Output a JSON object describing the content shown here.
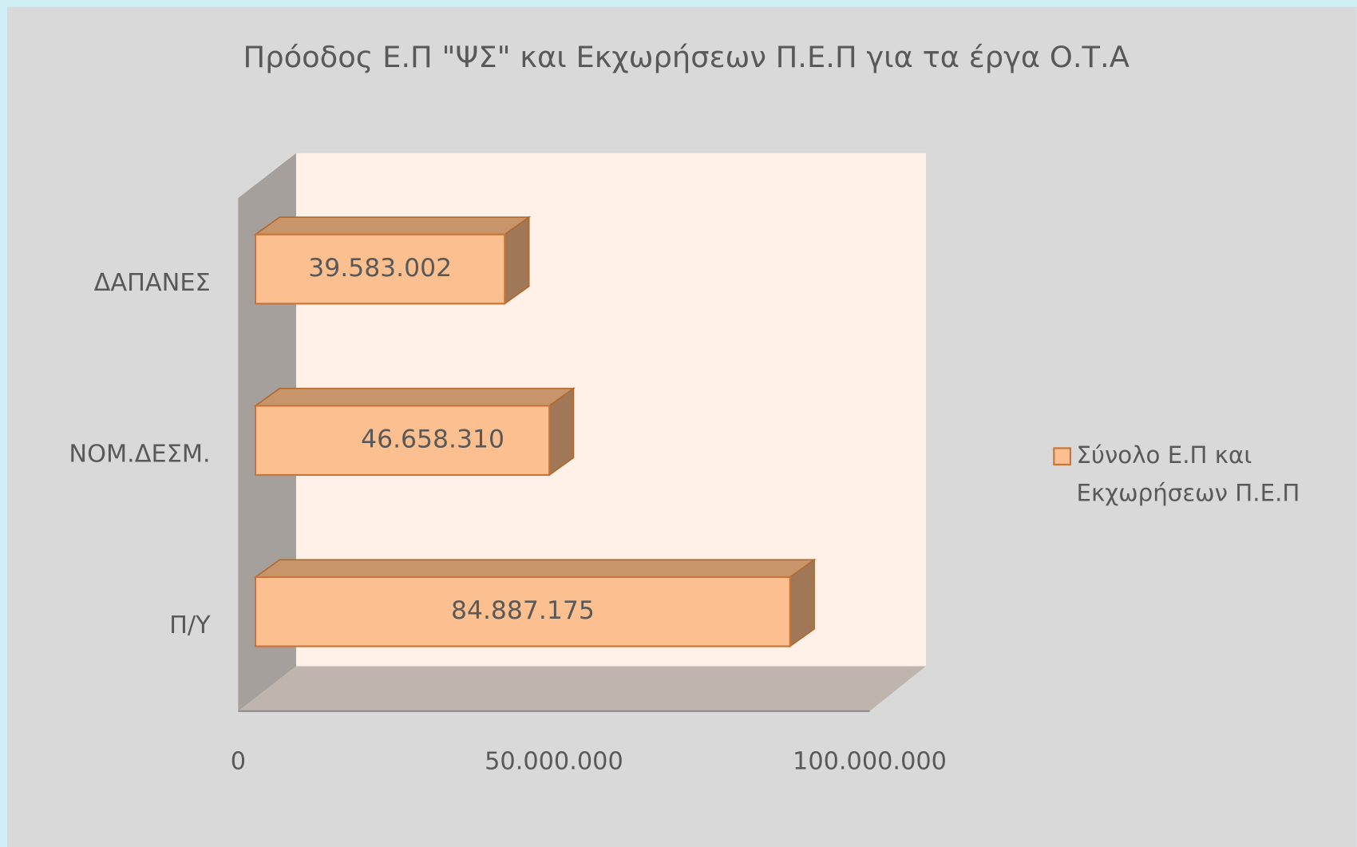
{
  "chart_data": {
    "type": "bar",
    "orientation": "horizontal",
    "title": "Πρόοδος Ε.Π \"ΨΣ\" και Εκχωρήσεων Π.Ε.Π για τα έργα Ο.Τ.Α",
    "categories": [
      "ΔΑΠΑΝΕΣ",
      "ΝΟΜ.ΔΕΣΜ.",
      "Π/Υ"
    ],
    "series": [
      {
        "name": "Σύνολο Ε.Π και Εκχωρήσεων Π.Ε.Π",
        "color": "#fcc090",
        "values": [
          39583002,
          46658310,
          84887175
        ],
        "value_labels": [
          "39.583.002",
          "46.658.310",
          "84.887.175"
        ]
      }
    ],
    "xlim": [
      0,
      100000000
    ],
    "xticks": [
      0,
      {
        "value": 50000000,
        "label": "50.000.000"
      },
      {
        "value": 100000000,
        "label": "100.000.000"
      }
    ],
    "legend": "right",
    "grid": false
  }
}
